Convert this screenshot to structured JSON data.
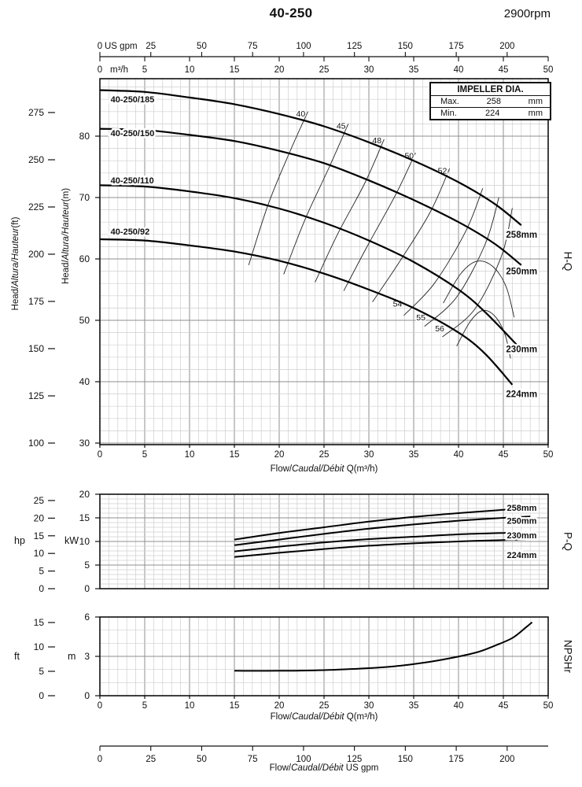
{
  "header": {
    "title": "40-250",
    "rpm": "2900rpm"
  },
  "impeller_box": {
    "title": "IMPELLER DIA.",
    "rows": [
      {
        "label": "Max.",
        "value": "258",
        "unit": "mm"
      },
      {
        "label": "Min.",
        "value": "224",
        "unit": "mm"
      }
    ]
  },
  "axis_labels": {
    "flow_m3h": {
      "pre": "Flow/",
      "italic": "Caudal/Débit",
      "post": " Q(m³/h)"
    },
    "flow_gpm": {
      "pre": "Flow/",
      "italic": "Caudal/Débit",
      "post": "  US gpm"
    },
    "head_ft": {
      "pre": "Head/",
      "italic": "Altura/Hauteur",
      "post": "(ft)"
    },
    "head_m": {
      "pre": "Head/",
      "italic": "Altura/Hauteur",
      "post": "(m)"
    },
    "hq": "H-Q",
    "pq": "P-Q",
    "npshr": "NPSHr",
    "kw": "kW",
    "hp": "hp",
    "ft": "ft",
    "m": "m"
  },
  "gpm_axis": {
    "unit": "US gpm",
    "ticks": [
      0,
      25,
      50,
      75,
      100,
      125,
      150,
      175,
      200
    ],
    "gpm_per_m3h": 4.403
  },
  "m3h_axis": {
    "unit": "m³/h",
    "ticks": [
      0,
      5,
      10,
      15,
      20,
      25,
      30,
      35,
      40,
      45,
      50
    ]
  },
  "chart_data": [
    {
      "id": "hq",
      "type": "line",
      "title": "H-Q",
      "xlabel": "Flow/Caudal/Débit Q(m³/h)",
      "xlim": [
        0,
        50
      ],
      "x_ticks": [
        0,
        5,
        10,
        15,
        20,
        25,
        30,
        35,
        40,
        45,
        50
      ],
      "ylim_m": [
        30,
        89
      ],
      "y_ticks_m": [
        30,
        40,
        50,
        60,
        70,
        80
      ],
      "y_ticks_ft": [
        100,
        125,
        150,
        175,
        200,
        225,
        250,
        275
      ],
      "series": [
        {
          "model": "40-250/185",
          "dia": "258mm",
          "model_label_at": [
            1.2,
            86.0
          ],
          "dia_label_at": [
            45.3,
            64.0
          ],
          "points": [
            [
              0,
              87.5
            ],
            [
              5,
              87.2
            ],
            [
              10,
              86.3
            ],
            [
              15,
              85.2
            ],
            [
              20,
              83.6
            ],
            [
              25,
              81.6
            ],
            [
              30,
              79
            ],
            [
              35,
              76
            ],
            [
              40,
              72.5
            ],
            [
              44,
              69
            ],
            [
              47,
              65.5
            ]
          ]
        },
        {
          "model": "40-250/150",
          "dia": "250mm",
          "model_label_at": [
            1.2,
            80.5
          ],
          "dia_label_at": [
            45.3,
            58.0
          ],
          "points": [
            [
              0,
              81.2
            ],
            [
              5,
              81
            ],
            [
              10,
              80.2
            ],
            [
              15,
              79.2
            ],
            [
              20,
              77.6
            ],
            [
              25,
              75.6
            ],
            [
              30,
              72.8
            ],
            [
              35,
              69.6
            ],
            [
              40,
              66
            ],
            [
              44,
              62.5
            ],
            [
              47,
              59
            ]
          ]
        },
        {
          "model": "40-250/110",
          "dia": "230mm",
          "model_label_at": [
            1.2,
            72.8
          ],
          "dia_label_at": [
            45.3,
            45.3
          ],
          "points": [
            [
              0,
              72
            ],
            [
              5,
              71.8
            ],
            [
              10,
              71
            ],
            [
              15,
              69.9
            ],
            [
              20,
              68.2
            ],
            [
              25,
              65.9
            ],
            [
              30,
              63
            ],
            [
              35,
              59.5
            ],
            [
              40,
              55
            ],
            [
              43,
              51.3
            ],
            [
              46.5,
              46
            ]
          ]
        },
        {
          "model": "40-250/92",
          "dia": "224mm",
          "model_label_at": [
            1.2,
            64.5
          ],
          "dia_label_at": [
            45.3,
            38.0
          ],
          "points": [
            [
              0,
              63.2
            ],
            [
              5,
              63
            ],
            [
              10,
              62.2
            ],
            [
              15,
              61.2
            ],
            [
              20,
              59.7
            ],
            [
              25,
              57.6
            ],
            [
              30,
              55
            ],
            [
              35,
              52
            ],
            [
              40,
              48
            ],
            [
              43,
              44.5
            ],
            [
              46,
              39.5
            ]
          ]
        }
      ],
      "efficiency_lines": [
        {
          "label": "40",
          "label_at": [
            22.4,
            83.6
          ],
          "points": [
            [
              23.2,
              84
            ],
            [
              21.2,
              77.5
            ],
            [
              18.8,
              69
            ],
            [
              16.6,
              59
            ]
          ]
        },
        {
          "label": "45",
          "label_at": [
            26.9,
            81.6
          ],
          "points": [
            [
              27.7,
              82
            ],
            [
              25.6,
              75
            ],
            [
              22.9,
              66.5
            ],
            [
              20.5,
              57.5
            ]
          ]
        },
        {
          "label": "48",
          "label_at": [
            30.9,
            79.2
          ],
          "points": [
            [
              31.7,
              79.5
            ],
            [
              29.6,
              72.5
            ],
            [
              26.5,
              64
            ],
            [
              24,
              56.2
            ]
          ]
        },
        {
          "label": "50",
          "label_at": [
            34.5,
            76.7
          ],
          "points": [
            [
              35.2,
              77.3
            ],
            [
              33,
              70.5
            ],
            [
              29.8,
              62
            ],
            [
              27.2,
              54.8
            ]
          ]
        },
        {
          "label": "52",
          "label_at": [
            38.2,
            74.3
          ],
          "points": [
            [
              39,
              74.7
            ],
            [
              36.8,
              67.5
            ],
            [
              33.4,
              59.5
            ],
            [
              30.4,
              53
            ]
          ]
        },
        {
          "label": "54",
          "label_at": [
            33.2,
            52.6
          ],
          "points": [
            [
              42.7,
              71.5
            ],
            [
              40.8,
              64.5
            ],
            [
              37.3,
              56
            ],
            [
              33.9,
              50.8
            ]
          ]
        },
        {
          "label": "55",
          "label_at": [
            35.8,
            50.4
          ],
          "points": [
            [
              44.5,
              70
            ],
            [
              43,
              62.5
            ],
            [
              39.8,
              53.8
            ],
            [
              36.2,
              49
            ]
          ]
        },
        {
          "label": "56",
          "label_at": [
            37.9,
            48.6
          ],
          "points": [
            [
              46,
              68.3
            ],
            [
              44.8,
              60.5
            ],
            [
              41.8,
              51.8
            ],
            [
              38.2,
              47.3
            ]
          ]
        }
      ],
      "efficiency_arcs": [
        [
          [
            38.3,
            52.8
          ],
          [
            40.2,
            57.5
          ],
          [
            42,
            59.6
          ],
          [
            43.8,
            58.8
          ],
          [
            45.3,
            55.5
          ],
          [
            46.2,
            50.5
          ]
        ],
        [
          [
            39.8,
            45.8
          ],
          [
            41.3,
            49.8
          ],
          [
            42.7,
            51.6
          ],
          [
            44.1,
            50.6
          ],
          [
            45.2,
            47.6
          ],
          [
            45.8,
            43.8
          ]
        ]
      ]
    },
    {
      "id": "pq",
      "type": "line",
      "title": "P-Q",
      "ylim_kw": [
        0,
        20
      ],
      "y_ticks_kw": [
        0,
        5,
        10,
        15,
        20
      ],
      "y_ticks_hp": [
        0,
        5,
        10,
        15,
        20,
        25
      ],
      "series": [
        {
          "dia": "258mm",
          "label_at": [
            45.4,
            17.2
          ],
          "points": [
            [
              15,
              10.4
            ],
            [
              20,
              11.8
            ],
            [
              25,
              13
            ],
            [
              30,
              14.2
            ],
            [
              35,
              15.2
            ],
            [
              40,
              16
            ],
            [
              45,
              16.7
            ],
            [
              48,
              17.1
            ]
          ]
        },
        {
          "dia": "250mm",
          "label_at": [
            45.4,
            14.4
          ],
          "points": [
            [
              15,
              9.2
            ],
            [
              20,
              10.4
            ],
            [
              25,
              11.6
            ],
            [
              30,
              12.7
            ],
            [
              35,
              13.6
            ],
            [
              40,
              14.4
            ],
            [
              45,
              15
            ],
            [
              48,
              15.3
            ]
          ]
        },
        {
          "dia": "230mm",
          "label_at": [
            45.4,
            11.3
          ],
          "points": [
            [
              15,
              7.9
            ],
            [
              20,
              8.9
            ],
            [
              25,
              9.8
            ],
            [
              30,
              10.5
            ],
            [
              35,
              11
            ],
            [
              40,
              11.5
            ],
            [
              45,
              11.8
            ],
            [
              47.5,
              11.9
            ]
          ]
        },
        {
          "dia": "224mm",
          "label_at": [
            45.4,
            7.2
          ],
          "points": [
            [
              15,
              6.7
            ],
            [
              20,
              7.6
            ],
            [
              25,
              8.4
            ],
            [
              30,
              9.1
            ],
            [
              35,
              9.6
            ],
            [
              40,
              10
            ],
            [
              45,
              10.3
            ],
            [
              47.5,
              10.4
            ]
          ]
        }
      ]
    },
    {
      "id": "npshr",
      "type": "line",
      "title": "NPSHr",
      "xlabel": "Flow/Caudal/Débit Q(m³/h)",
      "ylim_m": [
        0,
        6
      ],
      "y_ticks_m": [
        0,
        3,
        6
      ],
      "y_ticks_ft": [
        0,
        5,
        10,
        15
      ],
      "x_ticks": [
        0,
        5,
        10,
        15,
        20,
        25,
        30,
        35,
        40,
        45,
        50
      ],
      "series": [
        {
          "name": "NPSHr",
          "points": [
            [
              15,
              1.9
            ],
            [
              20,
              1.9
            ],
            [
              25,
              1.95
            ],
            [
              30,
              2.1
            ],
            [
              33,
              2.25
            ],
            [
              36,
              2.5
            ],
            [
              39,
              2.85
            ],
            [
              42,
              3.3
            ],
            [
              44,
              3.8
            ],
            [
              46,
              4.4
            ],
            [
              47.5,
              5.2
            ],
            [
              48.2,
              5.6
            ]
          ]
        }
      ]
    }
  ]
}
